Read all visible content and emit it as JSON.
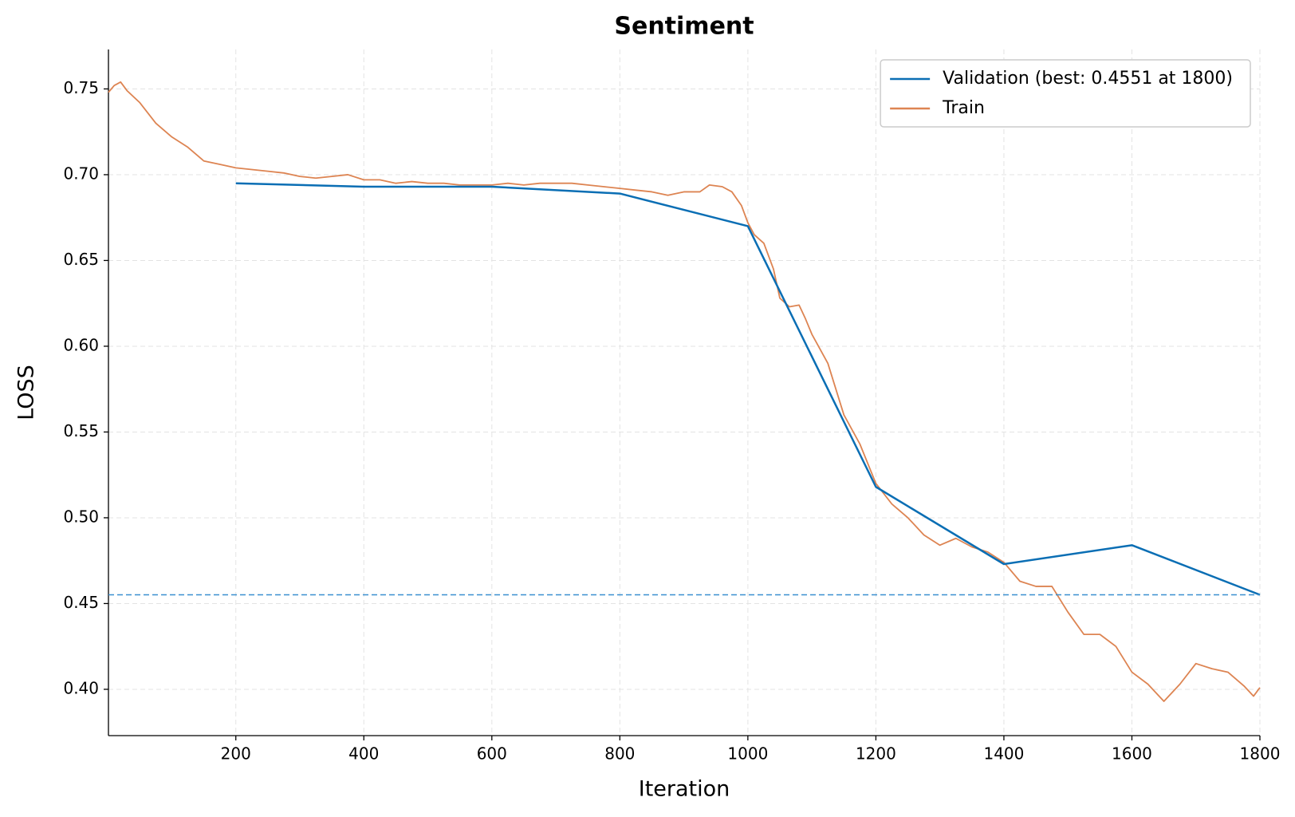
{
  "chart_data": {
    "type": "line",
    "title": "Sentiment",
    "x_label": "Iteration",
    "y_label": "LOSS",
    "xlim": [
      1,
      1800
    ],
    "xticks": [
      200,
      400,
      600,
      800,
      1000,
      1200,
      1400,
      1600,
      1800
    ],
    "ylim": [
      0.373,
      0.773
    ],
    "yticks": [
      {
        "value": 0.4,
        "label": "0.40"
      },
      0.45,
      {
        "value": 0.5,
        "label": "0.50"
      },
      0.55,
      {
        "value": 0.6,
        "label": "0.60"
      },
      0.65,
      {
        "value": 0.7,
        "label": "0.70"
      },
      0.75
    ],
    "grid": true,
    "legend": "upper right",
    "hline": 0.4551,
    "hline_color": "#3a8fd0",
    "series": [
      {
        "name": "Validation (best: 0.4551 at 1800)",
        "color": "#0a6eb4",
        "x": [
          200,
          400,
          600,
          800,
          1000,
          1200,
          1400,
          1600,
          1800
        ],
        "values": [
          0.695,
          0.693,
          0.693,
          0.689,
          0.67,
          0.518,
          0.473,
          0.484,
          0.4551
        ]
      },
      {
        "name": "Train",
        "color": "#dd8452",
        "x": [
          1,
          10,
          20,
          30,
          50,
          75,
          100,
          125,
          150,
          175,
          200,
          225,
          250,
          275,
          300,
          325,
          350,
          375,
          400,
          425,
          450,
          475,
          500,
          525,
          550,
          575,
          600,
          625,
          650,
          675,
          700,
          725,
          750,
          775,
          800,
          825,
          850,
          875,
          900,
          925,
          940,
          960,
          975,
          990,
          1000,
          1010,
          1025,
          1040,
          1050,
          1065,
          1080,
          1090,
          1100,
          1125,
          1150,
          1175,
          1200,
          1225,
          1250,
          1275,
          1300,
          1325,
          1350,
          1375,
          1400,
          1425,
          1450,
          1475,
          1500,
          1525,
          1550,
          1575,
          1600,
          1625,
          1650,
          1675,
          1700,
          1725,
          1750,
          1775,
          1790,
          1800
        ],
        "values": [
          0.748,
          0.752,
          0.754,
          0.749,
          0.742,
          0.73,
          0.722,
          0.716,
          0.708,
          0.706,
          0.704,
          0.703,
          0.702,
          0.701,
          0.699,
          0.698,
          0.699,
          0.7,
          0.697,
          0.697,
          0.695,
          0.696,
          0.695,
          0.695,
          0.694,
          0.694,
          0.694,
          0.695,
          0.694,
          0.695,
          0.695,
          0.695,
          0.694,
          0.693,
          0.692,
          0.691,
          0.69,
          0.688,
          0.69,
          0.69,
          0.694,
          0.693,
          0.69,
          0.682,
          0.672,
          0.665,
          0.66,
          0.645,
          0.628,
          0.623,
          0.624,
          0.616,
          0.607,
          0.59,
          0.56,
          0.543,
          0.52,
          0.508,
          0.5,
          0.49,
          0.484,
          0.488,
          0.483,
          0.48,
          0.474,
          0.463,
          0.46,
          0.46,
          0.445,
          0.432,
          0.432,
          0.425,
          0.41,
          0.403,
          0.393,
          0.403,
          0.415,
          0.412,
          0.41,
          0.402,
          0.396,
          0.401
        ]
      }
    ]
  }
}
